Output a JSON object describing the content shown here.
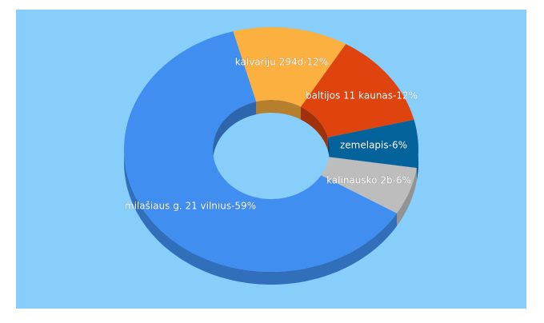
{
  "chart_data": {
    "type": "donut3d",
    "values": [
      12,
      12,
      6,
      6,
      59
    ],
    "value_labels": [
      "kalvariju 294d-12%",
      "baltijos 11 kaunas-12%",
      "zemelapis-6%",
      "kalinausko 2b-6%",
      "milašiaus g. 21 vilnius-59%"
    ],
    "colors": [
      "#fbb040",
      "#e0440e",
      "#04639a",
      "#bdbdbd",
      "#3f8ef0"
    ]
  }
}
